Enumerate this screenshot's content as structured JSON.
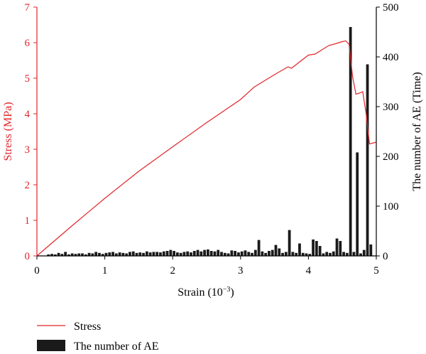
{
  "chart_data": {
    "type": "bar",
    "x_axis": {
      "label_main": "Strain (10",
      "label_sup": "−3",
      "label_close": ")",
      "range": [
        0,
        5
      ],
      "ticks": [
        "0",
        "1",
        "2",
        "3",
        "4",
        "5"
      ]
    },
    "y_left": {
      "label": "Stress (MPa)",
      "range": [
        0,
        7
      ],
      "ticks": [
        "0",
        "1",
        "2",
        "3",
        "4",
        "5",
        "6",
        "7"
      ],
      "color": "#e0262b"
    },
    "y_right": {
      "label": "The number of AE (Time)",
      "range": [
        0,
        500
      ],
      "ticks": [
        "0",
        "100",
        "200",
        "300",
        "400",
        "500"
      ],
      "color": "#000000"
    },
    "legend_placement": "bottom-left",
    "series": [
      {
        "name": "Stress",
        "type": "line",
        "axis": "left",
        "color": "#e0262b",
        "points": [
          [
            0,
            0
          ],
          [
            0.5,
            0.82
          ],
          [
            1.0,
            1.62
          ],
          [
            1.5,
            2.38
          ],
          [
            2.0,
            3.07
          ],
          [
            2.5,
            3.75
          ],
          [
            3.0,
            4.4
          ],
          [
            3.2,
            4.75
          ],
          [
            3.5,
            5.1
          ],
          [
            3.7,
            5.32
          ],
          [
            3.75,
            5.28
          ],
          [
            4.0,
            5.65
          ],
          [
            4.1,
            5.68
          ],
          [
            4.3,
            5.92
          ],
          [
            4.4,
            5.97
          ],
          [
            4.5,
            6.03
          ],
          [
            4.55,
            6.05
          ],
          [
            4.6,
            5.95
          ],
          [
            4.65,
            5.05
          ],
          [
            4.7,
            4.55
          ],
          [
            4.75,
            4.58
          ],
          [
            4.8,
            4.62
          ],
          [
            4.85,
            4.0
          ],
          [
            4.9,
            3.15
          ],
          [
            5.0,
            3.2
          ]
        ]
      },
      {
        "name": "The number of AE",
        "type": "bar",
        "axis": "right",
        "color": "#1a1a1a",
        "bar_width": 0.05,
        "x": [
          0.15,
          0.2,
          0.25,
          0.3,
          0.35,
          0.4,
          0.45,
          0.5,
          0.55,
          0.6,
          0.65,
          0.7,
          0.75,
          0.8,
          0.85,
          0.9,
          0.95,
          1.0,
          1.05,
          1.1,
          1.15,
          1.2,
          1.25,
          1.3,
          1.35,
          1.4,
          1.45,
          1.5,
          1.55,
          1.6,
          1.65,
          1.7,
          1.75,
          1.8,
          1.85,
          1.9,
          1.95,
          2.0,
          2.05,
          2.1,
          2.15,
          2.2,
          2.25,
          2.3,
          2.35,
          2.4,
          2.45,
          2.5,
          2.55,
          2.6,
          2.65,
          2.7,
          2.75,
          2.8,
          2.85,
          2.9,
          2.95,
          3.0,
          3.05,
          3.1,
          3.15,
          3.2,
          3.25,
          3.3,
          3.35,
          3.4,
          3.45,
          3.5,
          3.55,
          3.6,
          3.65,
          3.7,
          3.75,
          3.8,
          3.85,
          3.9,
          3.95,
          4.0,
          4.05,
          4.1,
          4.15,
          4.2,
          4.25,
          4.3,
          4.35,
          4.4,
          4.45,
          4.5,
          4.55,
          4.6,
          4.65,
          4.7,
          4.75,
          4.8,
          4.85,
          4.9
        ],
        "values": [
          3,
          4,
          3,
          6,
          4,
          8,
          3,
          5,
          4,
          5,
          5,
          3,
          6,
          5,
          8,
          6,
          4,
          6,
          7,
          8,
          5,
          7,
          6,
          5,
          8,
          9,
          6,
          7,
          6,
          9,
          7,
          8,
          8,
          7,
          9,
          10,
          12,
          10,
          7,
          6,
          8,
          9,
          7,
          10,
          12,
          9,
          12,
          13,
          10,
          9,
          12,
          8,
          6,
          5,
          11,
          10,
          7,
          9,
          11,
          8,
          6,
          12,
          32,
          9,
          6,
          10,
          12,
          22,
          15,
          6,
          8,
          52,
          8,
          6,
          25,
          6,
          5,
          4,
          33,
          30,
          20,
          5,
          8,
          6,
          9,
          35,
          30,
          8,
          6,
          460,
          8,
          208,
          5,
          12,
          385,
          23
        ]
      }
    ]
  }
}
